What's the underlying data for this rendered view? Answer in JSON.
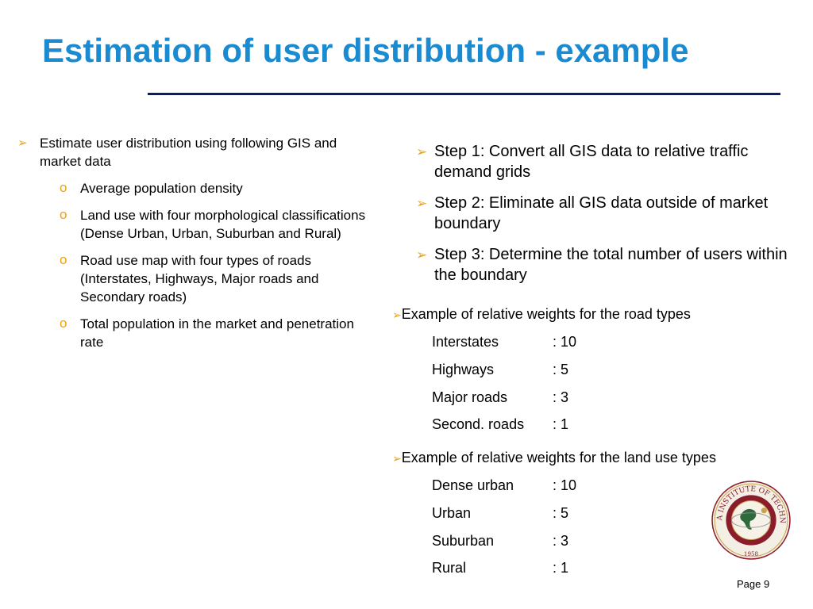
{
  "title": "Estimation of user distribution - example",
  "left": {
    "main": "Estimate user distribution using following GIS and market data",
    "items": [
      "Average population density",
      "Land use with four morphological classifications (Dense Urban, Urban, Suburban and Rural)",
      "Road use map with four types of roads (Interstates, Highways, Major roads and Secondary roads)",
      "Total population in the market and penetration rate"
    ]
  },
  "steps": [
    "Step 1: Convert all GIS data to relative traffic demand grids",
    "Step 2: Eliminate all GIS data outside of market boundary",
    "Step 3: Determine the total number of users within the boundary"
  ],
  "roads": {
    "heading": "Example of relative weights for the road types",
    "rows": [
      {
        "label": "Interstates",
        "value": ": 10"
      },
      {
        "label": "Highways",
        "value": ": 5"
      },
      {
        "label": "Major roads",
        "value": ": 3"
      },
      {
        "label": "Second. roads",
        "value": ": 1"
      }
    ]
  },
  "landuse": {
    "heading": "Example of relative weights for the land use types",
    "rows": [
      {
        "label": "Dense urban",
        "value": ": 10"
      },
      {
        "label": "Urban",
        "value": ": 5"
      },
      {
        "label": "Suburban",
        "value": ": 3"
      },
      {
        "label": "Rural",
        "value": ": 1"
      }
    ]
  },
  "seal": {
    "text": "FLORIDA INSTITUTE OF TECHNOLOGY",
    "year": "1958"
  },
  "page": "Page 9",
  "colors": {
    "title": "#1a8bd0",
    "rule": "#0c1c68",
    "bullet": "#e8a21b",
    "seal": "#8b1c2c"
  }
}
